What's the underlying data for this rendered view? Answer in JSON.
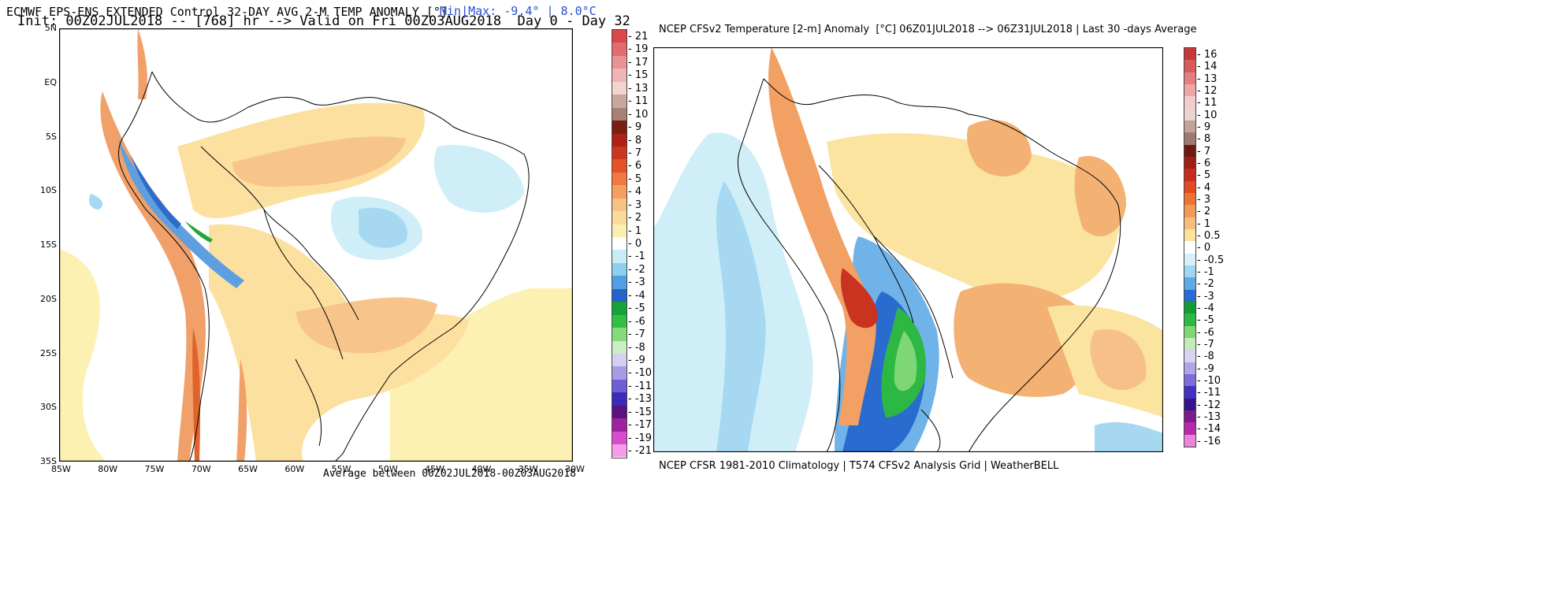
{
  "left_panel": {
    "title_line1": "ECMWF EPS-ENS EXTENDED Control 32-DAY AVG 2-M TEMP ANOMALY [°]",
    "title_line2": "Init: 00Z02JUL2018 -- [768] hr --> Valid on Fri 00Z03AUG2018  Day 0 - Day 32",
    "minmax": "Min|Max: -9.4° | 8.0°C",
    "footer": "Average between 00Z02JUL2018-00Z03AUG2018",
    "lat_ticks": [
      "5N",
      "EQ",
      "5S",
      "10S",
      "15S",
      "20S",
      "25S",
      "30S",
      "35S"
    ],
    "lon_ticks": [
      "85W",
      "80W",
      "75W",
      "70W",
      "65W",
      "60W",
      "55W",
      "50W",
      "45W",
      "40W",
      "35W",
      "30W"
    ],
    "colorbar_labels": [
      "21",
      "19",
      "17",
      "15",
      "13",
      "11",
      "10",
      "9",
      "8",
      "7",
      "6",
      "5",
      "4",
      "3",
      "2",
      "1",
      "0",
      "-1",
      "-2",
      "-3",
      "-4",
      "-5",
      "-6",
      "-7",
      "-8",
      "-9",
      "-10",
      "-11",
      "-13",
      "-15",
      "-17",
      "-19",
      "-21"
    ],
    "colorbar_colors": [
      "#d9494a",
      "#e16c6d",
      "#e99293",
      "#efb4b4",
      "#f4d3d3",
      "#c8a79d",
      "#a98074",
      "#7a1d13",
      "#ad2218",
      "#cc3621",
      "#e55128",
      "#f07a3d",
      "#f5a05e",
      "#f8c284",
      "#fadb9e",
      "#fbefb0",
      "#ffffff",
      "#c7ecf6",
      "#8fcfee",
      "#4f9fe2",
      "#2563c8",
      "#15a23a",
      "#34bf44",
      "#88da7f",
      "#c9eec1",
      "#d4d0f1",
      "#a79be3",
      "#6f5fd6",
      "#3c2ab9",
      "#5b1181",
      "#a0219f",
      "#d84ccb",
      "#f49ce8"
    ]
  },
  "right_panel": {
    "title": "NCEP CFSv2 Temperature [2-m] Anomaly  [°C] 06Z01JUL2018 --> 06Z31JUL2018 | Last 30 -days Average",
    "footer": "NCEP CFSR 1981-2010 Climatology | T574 CFSv2 Analysis Grid | WeatherBELL",
    "colorbar_labels": [
      "16",
      "14",
      "13",
      "12",
      "11",
      "10",
      "9",
      "8",
      "7",
      "6",
      "5",
      "4",
      "3",
      "2",
      "1",
      "0.5",
      "0",
      "-0.5",
      "-1",
      "-2",
      "-3",
      "-4",
      "-5",
      "-6",
      "-7",
      "-8",
      "-9",
      "-10",
      "-11",
      "-12",
      "-13",
      "-14",
      "-16"
    ],
    "colorbar_colors": [
      "#c8383b",
      "#d85a5c",
      "#e58082",
      "#eea6a7",
      "#f5cccd",
      "#e8d4d0",
      "#c4a39b",
      "#a0796f",
      "#6e1a12",
      "#9c2016",
      "#c52e1e",
      "#e24a26",
      "#ee7234",
      "#f39a55",
      "#f7bd7c",
      "#fbe39e",
      "#ffffff",
      "#d6f0f8",
      "#9fd6f1",
      "#5fa9e6",
      "#2a6bd0",
      "#139b35",
      "#2db843",
      "#7fd676",
      "#c3ebbb",
      "#d9d3f2",
      "#b1a5e6",
      "#7d6cd9",
      "#4331c0",
      "#34158c",
      "#7a1c8a",
      "#b72aa9",
      "#ec84dc"
    ]
  }
}
